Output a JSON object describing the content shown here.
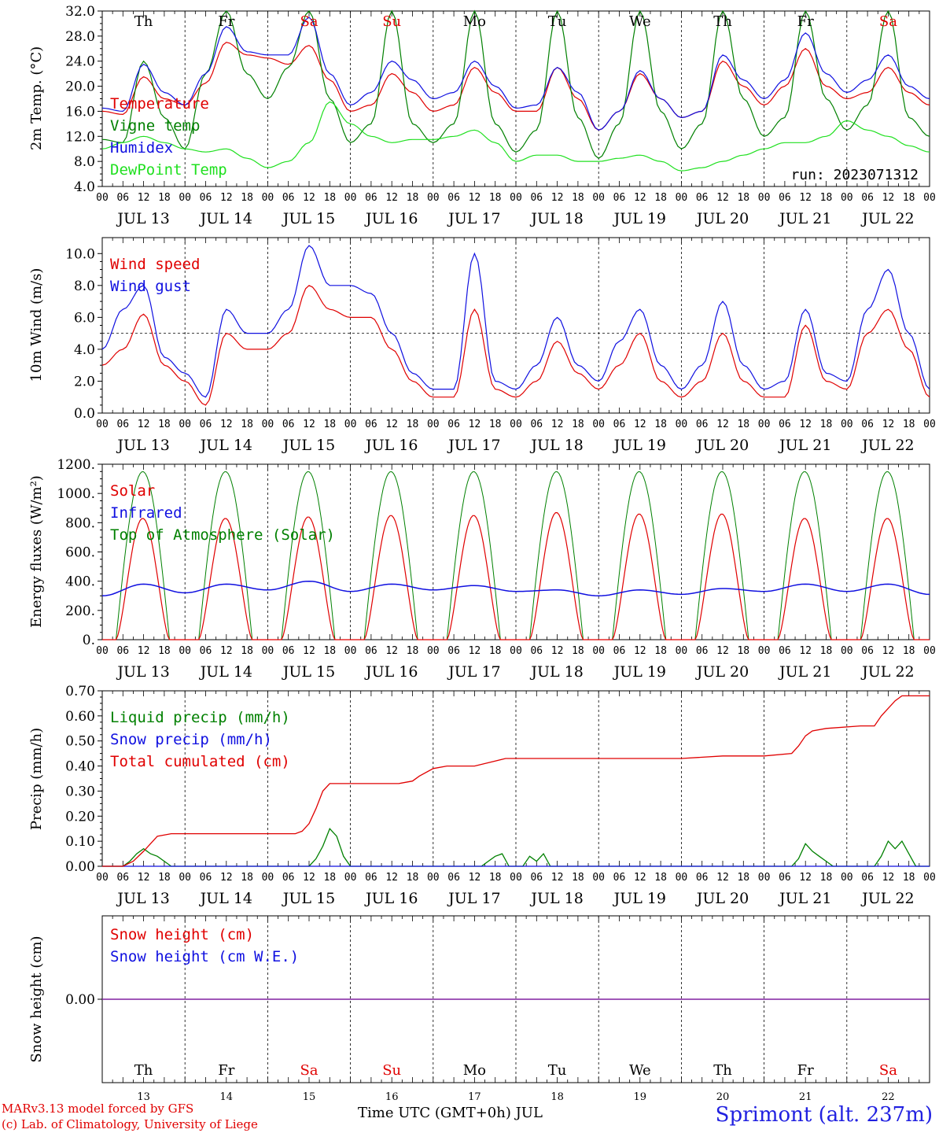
{
  "days": {
    "weekdays": [
      "Th",
      "Fr",
      "Sa",
      "Su",
      "Mo",
      "Tu",
      "We",
      "Th",
      "Fr",
      "Sa"
    ],
    "weekday_colors": [
      "#000000",
      "#000000",
      "#e00000",
      "#e00000",
      "#000000",
      "#000000",
      "#000000",
      "#000000",
      "#000000",
      "#e00000"
    ],
    "dates": [
      "JUL 13",
      "JUL 14",
      "JUL 15",
      "JUL 16",
      "JUL 17",
      "JUL 18",
      "JUL 19",
      "JUL 20",
      "JUL 21",
      "JUL 22"
    ],
    "date_numbers": [
      "13",
      "14",
      "15",
      "16",
      "17",
      "18",
      "19",
      "20",
      "21",
      "22"
    ],
    "hour_ticks": [
      "00",
      "06",
      "12",
      "18"
    ],
    "final_tick": "00"
  },
  "footer": {
    "model": "MARv3.13 model forced by GFS",
    "credit": "(c) Lab. of Climatology, University of Liege",
    "xlabel": "Time UTC (GMT+0h) JUL",
    "station": "Sprimont (alt. 237m)"
  },
  "colors": {
    "red": "#e00000",
    "blue": "#1010e0",
    "green": "#008000",
    "lightgreen": "#20e020",
    "purple": "#8020a0"
  },
  "chart_data": [
    {
      "type": "line",
      "ylabel": "2m Temp. (°C)",
      "ylim": [
        4,
        32
      ],
      "yticks": [
        "4.0",
        "8.0",
        "12.0",
        "16.0",
        "20.0",
        "24.0",
        "28.0",
        "32.0"
      ],
      "annotation": "run: 2023071312",
      "x_unit": "hours since JUL 13 00 UTC",
      "series": [
        {
          "name": "Temperature",
          "color": "#e00000",
          "x": [
            0,
            6,
            12,
            18,
            24,
            30,
            36,
            42,
            48,
            54,
            60,
            66,
            72,
            78,
            84,
            90,
            96,
            102,
            108,
            114,
            120,
            126,
            132,
            138,
            144,
            150,
            156,
            162,
            168,
            174,
            180,
            186,
            192,
            198,
            204,
            210,
            216,
            222,
            228,
            234,
            240
          ],
          "y": [
            16,
            15.5,
            21.5,
            18,
            17,
            20.5,
            27,
            25,
            24.5,
            23.5,
            26.5,
            21,
            16,
            17,
            22,
            19,
            16,
            17,
            23,
            19,
            16,
            16,
            23,
            18,
            13,
            16,
            22,
            18,
            15,
            16,
            24,
            20,
            17,
            20,
            26,
            20,
            18,
            19,
            23,
            19,
            17
          ]
        },
        {
          "name": "Vigne temp",
          "color": "#008000",
          "x": [
            0,
            6,
            12,
            18,
            24,
            30,
            36,
            42,
            48,
            54,
            60,
            66,
            72,
            78,
            84,
            90,
            96,
            102,
            108,
            114,
            120,
            126,
            132,
            138,
            144,
            150,
            156,
            162,
            168,
            174,
            180,
            186,
            192,
            198,
            204,
            210,
            216,
            222,
            228,
            234,
            240
          ],
          "y": [
            11.5,
            11,
            24,
            15,
            10,
            22,
            32,
            22,
            18,
            23,
            32,
            18,
            11,
            14,
            32,
            14,
            11,
            14,
            32,
            14,
            9.5,
            13,
            32,
            15,
            8.5,
            14,
            32,
            16,
            10,
            14,
            32,
            18,
            12,
            15,
            32,
            18,
            13,
            17,
            32,
            15,
            12
          ]
        },
        {
          "name": "Humidex",
          "color": "#1010e0",
          "x": [
            0,
            6,
            12,
            18,
            24,
            30,
            36,
            42,
            48,
            54,
            60,
            66,
            72,
            78,
            84,
            90,
            96,
            102,
            108,
            114,
            120,
            126,
            132,
            138,
            144,
            150,
            156,
            162,
            168,
            174,
            180,
            186,
            192,
            198,
            204,
            210,
            216,
            222,
            228,
            234,
            240
          ],
          "y": [
            16.5,
            16,
            23.5,
            19,
            17,
            22,
            29.5,
            25.5,
            25,
            25,
            31,
            22,
            17,
            19,
            24,
            21,
            18,
            19,
            24,
            20,
            16.5,
            17,
            23,
            19,
            13,
            16,
            22.5,
            18,
            15,
            16,
            25,
            21,
            18,
            21,
            28.5,
            22,
            19,
            21,
            25,
            20,
            18
          ]
        },
        {
          "name": "DewPoint Temp",
          "color": "#20e020",
          "x": [
            0,
            6,
            12,
            18,
            24,
            30,
            36,
            42,
            48,
            54,
            60,
            66,
            72,
            78,
            84,
            90,
            96,
            102,
            108,
            114,
            120,
            126,
            132,
            138,
            144,
            150,
            156,
            162,
            168,
            174,
            180,
            186,
            192,
            198,
            204,
            210,
            216,
            222,
            228,
            234,
            240
          ],
          "y": [
            10,
            11,
            12,
            11,
            10,
            9.5,
            10,
            8.5,
            7,
            8,
            11,
            17.5,
            14,
            12,
            11,
            11.5,
            11.5,
            12,
            13,
            11,
            8,
            9,
            9,
            8,
            8,
            8.5,
            9,
            8,
            6.5,
            7,
            8,
            9,
            10,
            11,
            11,
            12,
            14.5,
            13,
            12,
            10.5,
            9.5
          ]
        }
      ]
    },
    {
      "type": "line",
      "ylabel": "10m Wind (m/s)",
      "ylim": [
        0,
        11
      ],
      "yticks": [
        "0.0",
        "2.0",
        "4.0",
        "6.0",
        "8.0",
        "10.0"
      ],
      "reference_line": 5,
      "x_unit": "hours since JUL 13 00 UTC",
      "series": [
        {
          "name": "Wind speed",
          "color": "#e00000",
          "x": [
            0,
            6,
            12,
            18,
            24,
            30,
            36,
            42,
            48,
            54,
            60,
            66,
            72,
            78,
            84,
            90,
            96,
            102,
            108,
            114,
            120,
            126,
            132,
            138,
            144,
            150,
            156,
            162,
            168,
            174,
            180,
            186,
            192,
            198,
            204,
            210,
            216,
            222,
            228,
            234,
            240
          ],
          "y": [
            3,
            4,
            6.2,
            3,
            2,
            0.5,
            5,
            4,
            4,
            5,
            8,
            6.5,
            6,
            6,
            4,
            2,
            1,
            1,
            6.5,
            1.5,
            1,
            2,
            4.5,
            2.5,
            1.5,
            3,
            5,
            2,
            1,
            2,
            5,
            2,
            1,
            1,
            5.5,
            2,
            1.5,
            5,
            6.5,
            4,
            1
          ]
        },
        {
          "name": "Wind gust",
          "color": "#1010e0",
          "x": [
            0,
            6,
            12,
            18,
            24,
            30,
            36,
            42,
            48,
            54,
            60,
            66,
            72,
            78,
            84,
            90,
            96,
            102,
            108,
            114,
            120,
            126,
            132,
            138,
            144,
            150,
            156,
            162,
            168,
            174,
            180,
            186,
            192,
            198,
            204,
            210,
            216,
            222,
            228,
            234,
            240
          ],
          "y": [
            4,
            6.5,
            8,
            3.5,
            2.5,
            1,
            6.5,
            5,
            5,
            6.5,
            10.5,
            8,
            8,
            7.5,
            5,
            2.5,
            1.5,
            1.5,
            10,
            2,
            1.5,
            3,
            6,
            3,
            2,
            4.5,
            6.5,
            3,
            1.5,
            3,
            7,
            3,
            1.5,
            2,
            6.5,
            2.5,
            2,
            6.5,
            9,
            5,
            1.5
          ]
        }
      ]
    },
    {
      "type": "line",
      "ylabel": "Energy fluxes (W/m²)",
      "ylim": [
        0,
        1200
      ],
      "yticks": [
        "0.",
        "200.",
        "400.",
        "600.",
        "800.",
        "1000.",
        "1200."
      ],
      "x_unit": "hours since JUL 13 00 UTC",
      "solar_peaks": [
        830,
        830,
        840,
        850,
        850,
        870,
        860,
        860,
        830,
        830
      ],
      "toa_peak": 1150,
      "daylight_hours": [
        4,
        19.5
      ],
      "series": [
        {
          "name": "Solar",
          "color": "#e00000"
        },
        {
          "name": "Infrared",
          "color": "#1010e0",
          "x": [
            0,
            12,
            24,
            36,
            48,
            60,
            72,
            84,
            96,
            108,
            120,
            132,
            144,
            156,
            168,
            180,
            192,
            204,
            216,
            228,
            240
          ],
          "y": [
            300,
            380,
            320,
            380,
            340,
            400,
            330,
            380,
            340,
            370,
            330,
            340,
            300,
            340,
            310,
            350,
            330,
            380,
            330,
            380,
            310
          ]
        },
        {
          "name": "Top of Atmosphere (Solar)",
          "color": "#008000"
        }
      ]
    },
    {
      "type": "line",
      "ylabel": "Precip (mm/h)",
      "ylim": [
        0,
        0.7
      ],
      "yticks": [
        "0.00",
        "0.10",
        "0.20",
        "0.30",
        "0.40",
        "0.50",
        "0.60",
        "0.70"
      ],
      "x_unit": "hours since JUL 13 00 UTC",
      "series": [
        {
          "name": "Liquid precip (mm/h)",
          "color": "#008000",
          "x": [
            0,
            6,
            8,
            10,
            12,
            14,
            16,
            18,
            20,
            60,
            62,
            64,
            66,
            68,
            70,
            72,
            110,
            112,
            114,
            116,
            118,
            122,
            124,
            126,
            128,
            130,
            200,
            202,
            204,
            206,
            208,
            210,
            212,
            224,
            226,
            228,
            230,
            232,
            234,
            236,
            240
          ],
          "y": [
            0,
            0,
            0.02,
            0.05,
            0.07,
            0.05,
            0.04,
            0.02,
            0,
            0,
            0.03,
            0.08,
            0.15,
            0.12,
            0.04,
            0,
            0,
            0.02,
            0.04,
            0.05,
            0,
            0,
            0.04,
            0.02,
            0.05,
            0,
            0,
            0.03,
            0.09,
            0.06,
            0.04,
            0.02,
            0,
            0,
            0.04,
            0.1,
            0.07,
            0.1,
            0.05,
            0,
            0
          ]
        },
        {
          "name": "Snow precip (mm/h)",
          "color": "#1010e0",
          "x": [
            0,
            240
          ],
          "y": [
            0,
            0
          ]
        },
        {
          "name": "Total cumulated (cm)",
          "color": "#e00000",
          "x": [
            0,
            6,
            9,
            12,
            14,
            16,
            20,
            50,
            56,
            58,
            60,
            62,
            64,
            66,
            68,
            70,
            72,
            86,
            90,
            92,
            96,
            100,
            108,
            114,
            117,
            120,
            126,
            168,
            180,
            192,
            200,
            202,
            204,
            206,
            210,
            220,
            224,
            226,
            228,
            230,
            232,
            240
          ],
          "y": [
            0,
            0,
            0.02,
            0.06,
            0.09,
            0.12,
            0.13,
            0.13,
            0.13,
            0.14,
            0.17,
            0.23,
            0.3,
            0.33,
            0.33,
            0.33,
            0.33,
            0.33,
            0.34,
            0.36,
            0.39,
            0.4,
            0.4,
            0.42,
            0.43,
            0.43,
            0.43,
            0.43,
            0.44,
            0.44,
            0.45,
            0.48,
            0.52,
            0.54,
            0.55,
            0.56,
            0.56,
            0.6,
            0.63,
            0.66,
            0.68,
            0.68
          ]
        }
      ]
    },
    {
      "type": "line",
      "ylabel": "Snow height (cm)",
      "yticks": [
        "0.00"
      ],
      "x_unit": "hours since JUL 13 00 UTC",
      "series": [
        {
          "name": "Snow height (cm)",
          "color": "#e00000",
          "x": [
            0,
            240
          ],
          "y": [
            0,
            0
          ]
        },
        {
          "name": "Snow height (cm W.E.)",
          "color": "#1010e0",
          "x": [
            0,
            240
          ],
          "y": [
            0,
            0
          ]
        }
      ]
    }
  ]
}
